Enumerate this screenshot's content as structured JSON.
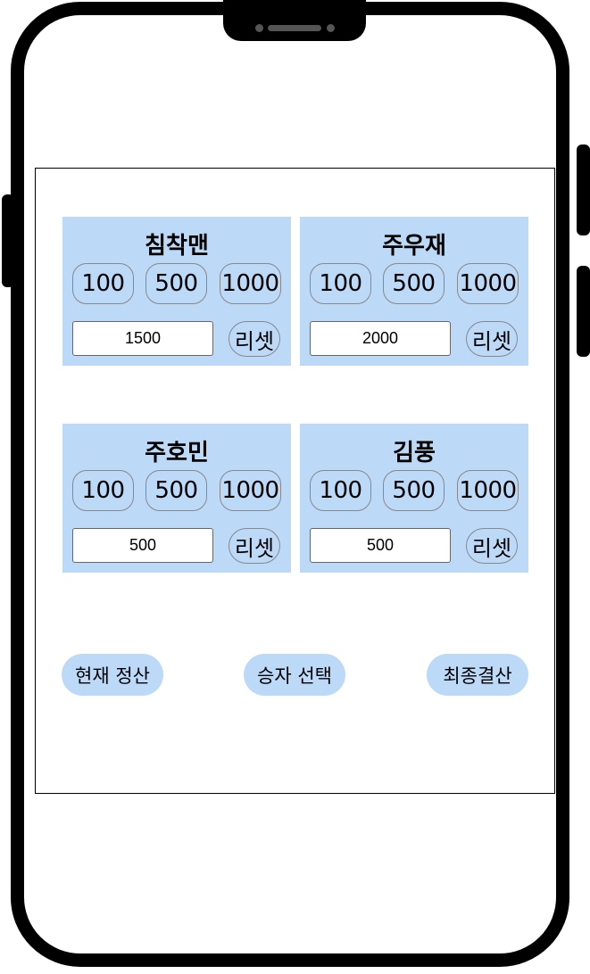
{
  "players": [
    {
      "name": "침착맨",
      "amount": "1500"
    },
    {
      "name": "주우재",
      "amount": "2000"
    },
    {
      "name": "주호민",
      "amount": "500"
    },
    {
      "name": "김풍",
      "amount": "500"
    }
  ],
  "chips": [
    "100",
    "500",
    "1000"
  ],
  "reset_label": "리셋",
  "actions": {
    "current_settle": "현재 정산",
    "select_winner": "승자 선택",
    "final_settle": "최종결산"
  },
  "colors": {
    "card_bg": "#bcd9f8",
    "frame": "#000000"
  }
}
